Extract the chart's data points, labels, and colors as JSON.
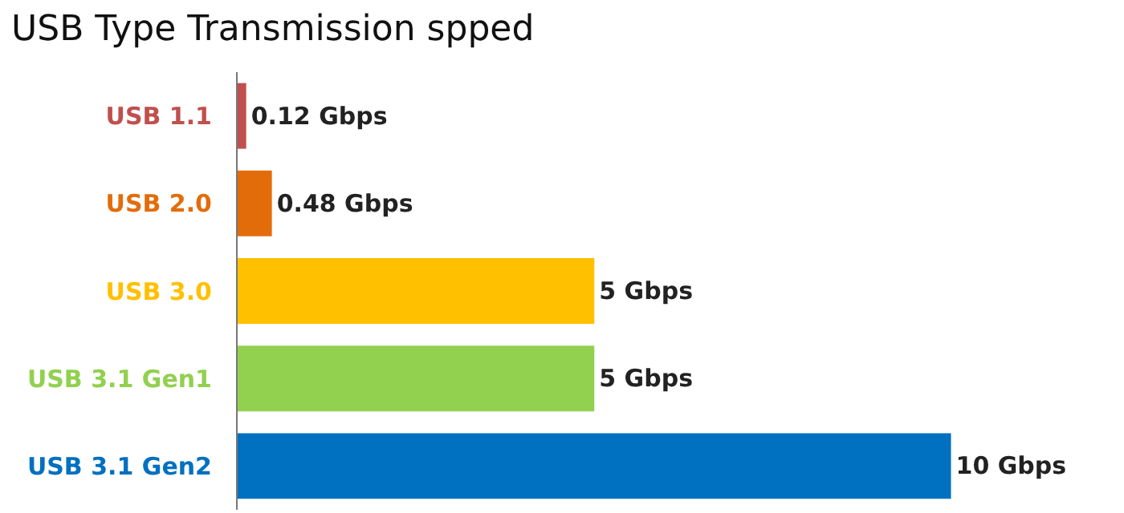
{
  "chart_data": {
    "type": "bar",
    "title": "USB Type Transmission spped",
    "orientation": "horizontal",
    "categories": [
      "USB 1.1",
      "USB 2.0",
      "USB 3.0",
      "USB 3.1 Gen1",
      "USB 3.1 Gen2"
    ],
    "values": [
      0.12,
      0.48,
      5,
      5,
      10
    ],
    "colors": [
      "#c0504d",
      "#e36c0a",
      "#ffc000",
      "#92d050",
      "#0070c0"
    ],
    "value_labels": [
      "0.12 Gbps",
      "0.48 Gbps",
      "5 Gbps",
      "5 Gbps",
      "10 Gbps"
    ],
    "tick_labels": "y"
  }
}
